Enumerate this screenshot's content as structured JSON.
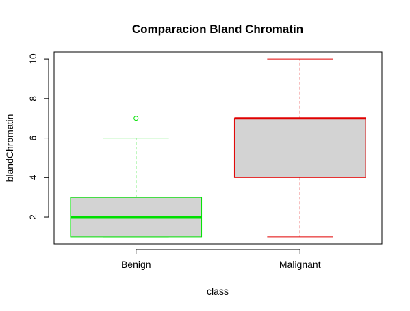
{
  "chart_data": {
    "type": "boxplot",
    "title": "Comparacion Bland Chromatin",
    "xlabel": "class",
    "ylabel": "blandChromatin",
    "ylim": [
      0.65,
      10.35
    ],
    "yticks": [
      2,
      4,
      6,
      8,
      10
    ],
    "grid": false,
    "categories": [
      "Benign",
      "Malignant"
    ],
    "boxes": [
      {
        "category": "Benign",
        "whisker_low": 1,
        "q1": 1,
        "median": 2,
        "q3": 3,
        "whisker_high": 6,
        "outliers": [
          7
        ],
        "color": "#00e000",
        "fill": "#d3d3d3"
      },
      {
        "category": "Malignant",
        "whisker_low": 1,
        "q1": 4,
        "median": 7,
        "q3": 7,
        "whisker_high": 10,
        "outliers": [],
        "color": "#e00000",
        "fill": "#d3d3d3"
      }
    ]
  }
}
